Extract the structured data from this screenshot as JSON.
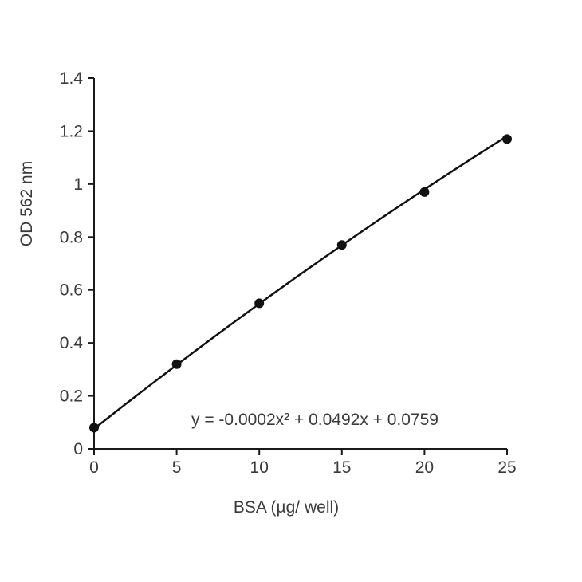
{
  "chart_data": {
    "type": "scatter",
    "title": "",
    "xlabel": "BSA (µg/ well)",
    "ylabel": "OD 562 nm",
    "xlim": [
      0,
      25
    ],
    "ylim": [
      0,
      1.4
    ],
    "x_ticks": [
      0,
      5,
      10,
      15,
      20,
      25
    ],
    "y_ticks": [
      0,
      0.2,
      0.4,
      0.6,
      0.8,
      1.0,
      1.2,
      1.4
    ],
    "x_tick_labels": [
      "0",
      "5",
      "10",
      "15",
      "20",
      "25"
    ],
    "y_tick_labels": [
      "0",
      "0.2",
      "0.4",
      "0.6",
      "0.8",
      "1",
      "1.2",
      "1.4"
    ],
    "grid": false,
    "legend": "none",
    "series": [
      {
        "x": [
          0,
          5,
          10,
          15,
          20,
          25
        ],
        "y": [
          0.08,
          0.32,
          0.55,
          0.77,
          0.97,
          1.17
        ],
        "color": "#111111"
      }
    ],
    "trendline": {
      "type": "polynomial",
      "coefficients": {
        "a": -0.0002,
        "b": 0.0492,
        "c": 0.0759
      },
      "equation": "y = -0.0002x² + 0.0492x + 0.0759"
    }
  }
}
